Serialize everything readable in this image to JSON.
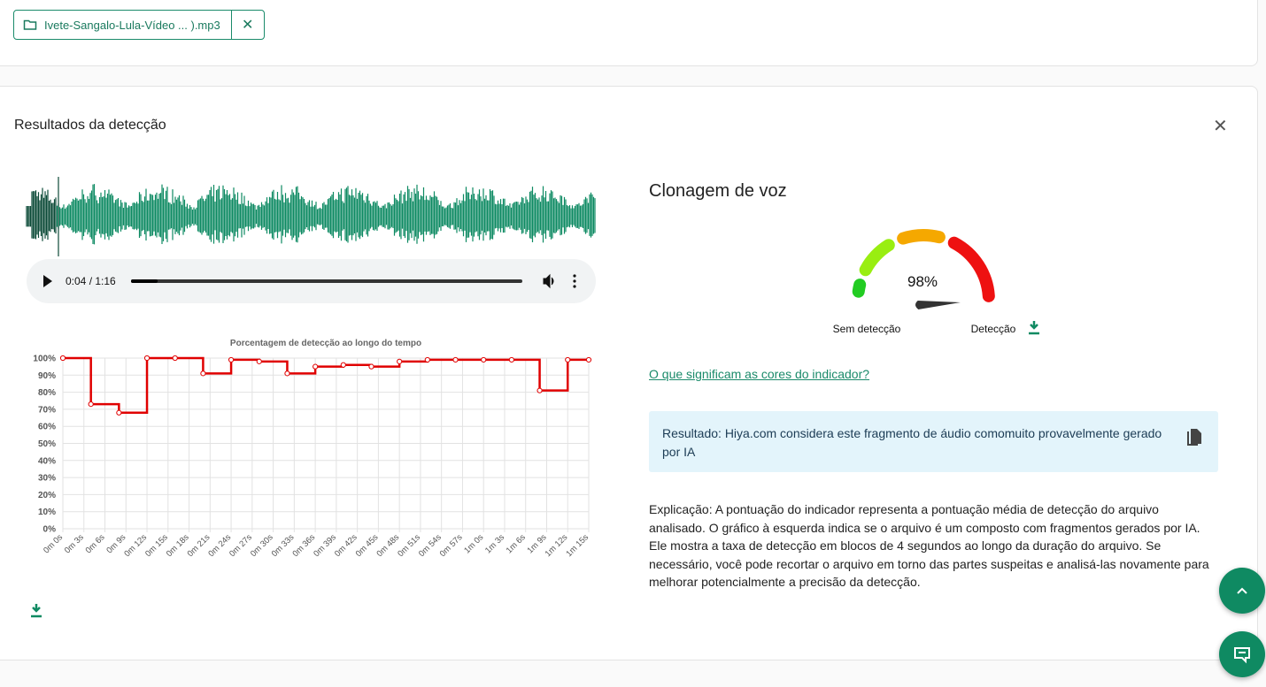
{
  "file": {
    "name": "Ivete-Sangalo-Lula-Vídeo ... ).mp3"
  },
  "results": {
    "title": "Resultados da detecção"
  },
  "player": {
    "time": "0:04 / 1:16"
  },
  "chart_data": {
    "type": "line",
    "title": "Porcentagem de detecção ao longo do tempo",
    "color": "#e00000",
    "step": true,
    "grid": true,
    "x": [
      0,
      4,
      8,
      12,
      16,
      20,
      24,
      28,
      32,
      36,
      40,
      44,
      48,
      52,
      56,
      60,
      64,
      68,
      72,
      75
    ],
    "values": [
      100,
      73,
      68,
      100,
      100,
      91,
      99,
      98,
      91,
      95,
      96,
      95,
      98,
      99,
      99,
      99,
      99,
      81,
      99,
      99
    ],
    "xlim": [
      0,
      75
    ],
    "xticks": [
      {
        "value": 0,
        "label": "0m 0s"
      },
      {
        "value": 3,
        "label": "0m 3s"
      },
      {
        "value": 6,
        "label": "0m 6s"
      },
      {
        "value": 9,
        "label": "0m 9s"
      },
      {
        "value": 12,
        "label": "0m 12s"
      },
      {
        "value": 15,
        "label": "0m 15s"
      },
      {
        "value": 18,
        "label": "0m 18s"
      },
      {
        "value": 21,
        "label": "0m 21s"
      },
      {
        "value": 24,
        "label": "0m 24s"
      },
      {
        "value": 27,
        "label": "0m 27s"
      },
      {
        "value": 30,
        "label": "0m 30s"
      },
      {
        "value": 33,
        "label": "0m 33s"
      },
      {
        "value": 36,
        "label": "0m 36s"
      },
      {
        "value": 39,
        "label": "0m 39s"
      },
      {
        "value": 42,
        "label": "0m 42s"
      },
      {
        "value": 45,
        "label": "0m 45s"
      },
      {
        "value": 48,
        "label": "0m 48s"
      },
      {
        "value": 51,
        "label": "0m 51s"
      },
      {
        "value": 54,
        "label": "0m 54s"
      },
      {
        "value": 57,
        "label": "0m 57s"
      },
      {
        "value": 60,
        "label": "1m 0s"
      },
      {
        "value": 63,
        "label": "1m 3s"
      },
      {
        "value": 66,
        "label": "1m 6s"
      },
      {
        "value": 69,
        "label": "1m 9s"
      },
      {
        "value": 72,
        "label": "1m 12s"
      },
      {
        "value": 75,
        "label": "1m 15s"
      }
    ],
    "ylim": [
      0,
      100
    ],
    "yticks": [
      {
        "value": 0,
        "label": "0%"
      },
      {
        "value": 10,
        "label": "10%"
      },
      {
        "value": 20,
        "label": "20%"
      },
      {
        "value": 30,
        "label": "30%"
      },
      {
        "value": 40,
        "label": "40%"
      },
      {
        "value": 50,
        "label": "50%"
      },
      {
        "value": 60,
        "label": "60%"
      },
      {
        "value": 70,
        "label": "70%"
      },
      {
        "value": 80,
        "label": "80%"
      },
      {
        "value": 90,
        "label": "90%"
      },
      {
        "value": 100,
        "label": "100%"
      }
    ]
  },
  "gauge": {
    "title": "Clonagem de voz",
    "value": 98,
    "value_label": "98%",
    "range": [
      0,
      100
    ],
    "min_label": "Sem detecção",
    "max_label": "Detecção"
  },
  "link": "O que significam as cores do indicador?",
  "result": "Resultado: Hiya.com considera este fragmento de áudio comomuito provavelmente gerado por IA",
  "explanation": "Explicação: A pontuação do indicador representa a pontuação média de detecção do arquivo analisado. O gráfico à esquerda indica se o arquivo é um composto com fragmentos gerados por IA. Ele mostra a taxa de detecção em blocos de 4 segundos ao longo da duração do arquivo. Se necessário, você pode recortar o arquivo em torno das partes suspeitas e analisá-las novamente para melhorar potencialmente a precisão da detecção."
}
